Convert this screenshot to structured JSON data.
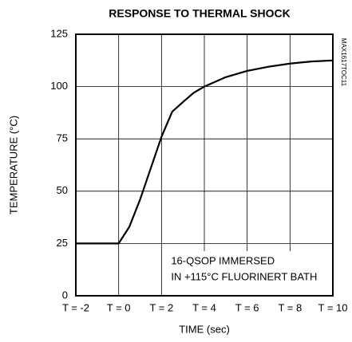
{
  "chart_data": {
    "type": "line",
    "title": "RESPONSE TO THERMAL SHOCK",
    "x_label": "TIME (sec)",
    "y_label": "TEMPERATURE (°C)",
    "side_label": "MAX1617TOC11",
    "annotations": [
      "16-QSOP IMMERSED",
      "IN +115°C FLUORINERT BATH"
    ],
    "x": [
      -2,
      0,
      0.5,
      1,
      1.5,
      2,
      2.5,
      3,
      3.5,
      4,
      5,
      6,
      7,
      8,
      9,
      10
    ],
    "series": [
      {
        "color": "#000000",
        "values": [
          25,
          25,
          33,
          46,
          61,
          76,
          88,
          92.6,
          97,
          100,
          104.5,
          107.5,
          109.5,
          111,
          112,
          112.5
        ]
      }
    ],
    "xlim": [
      -2,
      10
    ],
    "xticks": [
      {
        "value": -2,
        "label": "T = -2"
      },
      {
        "value": 0,
        "label": "T = 0"
      },
      {
        "value": 2,
        "label": "T = 2"
      },
      {
        "value": 4,
        "label": "T = 4"
      },
      {
        "value": 6,
        "label": "T = 6"
      },
      {
        "value": 8,
        "label": "T = 8"
      },
      {
        "value": 10,
        "label": "T = 10"
      }
    ],
    "ylim": [
      0,
      125
    ],
    "yticks": [
      0,
      25,
      50,
      75,
      100,
      125
    ],
    "grid": true
  }
}
